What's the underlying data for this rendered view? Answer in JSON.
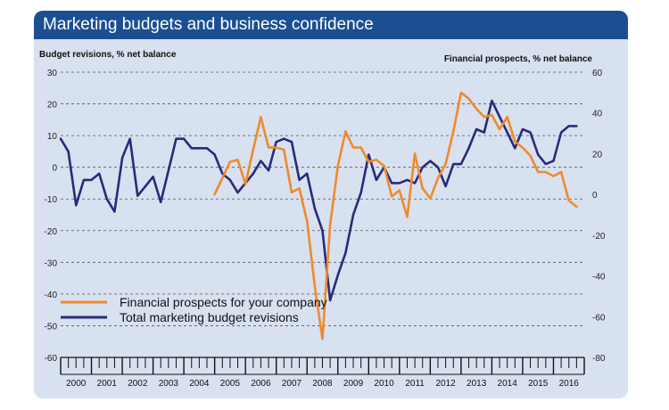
{
  "header": {
    "title": "Marketing budgets and business confidence"
  },
  "colors": {
    "orange": "#f08a2c",
    "navy": "#2a2a7a",
    "panel": "#d8e1f0",
    "title_bg": "#1b4f91"
  },
  "chart_data": {
    "type": "line",
    "title": "Marketing budgets and business confidence",
    "left_axis": {
      "label": "Budget revisions, % net balance",
      "range": [
        -60,
        30
      ],
      "ticks": [
        30,
        20,
        10,
        0,
        -10,
        -20,
        -30,
        -40,
        -50,
        -60
      ]
    },
    "right_axis": {
      "label": "Financial prospects, % net balance",
      "range": [
        -80,
        60
      ],
      "ticks": [
        60,
        40,
        20,
        0,
        -20,
        -40,
        -60,
        -80
      ]
    },
    "x_years": [
      "2000",
      "2001",
      "2002",
      "2003",
      "2004",
      "2005",
      "2006",
      "2007",
      "2008",
      "2009",
      "2010",
      "2011",
      "2012",
      "2013",
      "2014",
      "2015",
      "2016"
    ],
    "x_range": [
      2000.0,
      2017.0
    ],
    "grid": "dashed horizontal",
    "legend": "lower-left",
    "series": [
      {
        "name": "Financial prospects for your company",
        "axis": "right",
        "color": "#f08a2c",
        "x": [
          2005.0,
          2005.25,
          2005.5,
          2005.75,
          2006.0,
          2006.25,
          2006.5,
          2006.75,
          2007.0,
          2007.25,
          2007.5,
          2007.75,
          2008.0,
          2008.25,
          2008.5,
          2008.75,
          2009.0,
          2009.25,
          2009.5,
          2009.75,
          2010.0,
          2010.25,
          2010.5,
          2010.75,
          2011.0,
          2011.25,
          2011.5,
          2011.75,
          2012.0,
          2012.25,
          2012.5,
          2012.75,
          2013.0,
          2013.25,
          2013.5,
          2013.75,
          2014.0,
          2014.25,
          2014.5,
          2014.75,
          2015.0,
          2015.25,
          2015.5,
          2015.75,
          2016.0,
          2016.25,
          2016.5,
          2016.75
        ],
        "values": [
          0,
          8,
          16,
          17,
          5,
          22,
          38,
          23,
          23,
          22,
          1,
          3,
          -13,
          -45,
          -71,
          -15,
          14,
          31,
          23,
          23,
          16,
          17,
          14,
          -1,
          2,
          -11,
          20,
          3,
          -2,
          8,
          15,
          31,
          50,
          47,
          42,
          38,
          39,
          32,
          38,
          26,
          23,
          19,
          11,
          11,
          9,
          11,
          -3,
          -6
        ]
      },
      {
        "name": "Total marketing budget revisions",
        "axis": "left",
        "color": "#2a2a7a",
        "x": [
          2000.0,
          2000.25,
          2000.5,
          2000.75,
          2001.0,
          2001.25,
          2001.5,
          2001.75,
          2002.0,
          2002.25,
          2002.5,
          2002.75,
          2003.0,
          2003.25,
          2003.5,
          2003.75,
          2004.0,
          2004.25,
          2004.5,
          2004.75,
          2005.0,
          2005.25,
          2005.5,
          2005.75,
          2006.0,
          2006.25,
          2006.5,
          2006.75,
          2007.0,
          2007.25,
          2007.5,
          2007.75,
          2008.0,
          2008.25,
          2008.5,
          2008.75,
          2009.0,
          2009.25,
          2009.5,
          2009.75,
          2010.0,
          2010.25,
          2010.5,
          2010.75,
          2011.0,
          2011.25,
          2011.5,
          2011.75,
          2012.0,
          2012.25,
          2012.5,
          2012.75,
          2013.0,
          2013.25,
          2013.5,
          2013.75,
          2014.0,
          2014.25,
          2014.5,
          2014.75,
          2015.0,
          2015.25,
          2015.5,
          2015.75,
          2016.0,
          2016.25,
          2016.5,
          2016.75
        ],
        "values": [
          9,
          5,
          -12,
          -4,
          -4,
          -2,
          -10,
          -14,
          3,
          9,
          -9,
          -6,
          -3,
          -11,
          -1,
          9,
          9,
          6,
          6,
          6,
          4,
          -2,
          -4,
          -8,
          -5,
          -2,
          2,
          -1,
          8,
          9,
          8,
          -4,
          -2,
          -13,
          -20,
          -42,
          -34,
          -27,
          -15,
          -8,
          4,
          -4,
          0,
          -5,
          -5,
          -4,
          -5,
          0,
          2,
          0,
          -6,
          1,
          1,
          6,
          12,
          11,
          21,
          16,
          11,
          6,
          12,
          11,
          4,
          1,
          2,
          11,
          13,
          13
        ]
      }
    ]
  }
}
